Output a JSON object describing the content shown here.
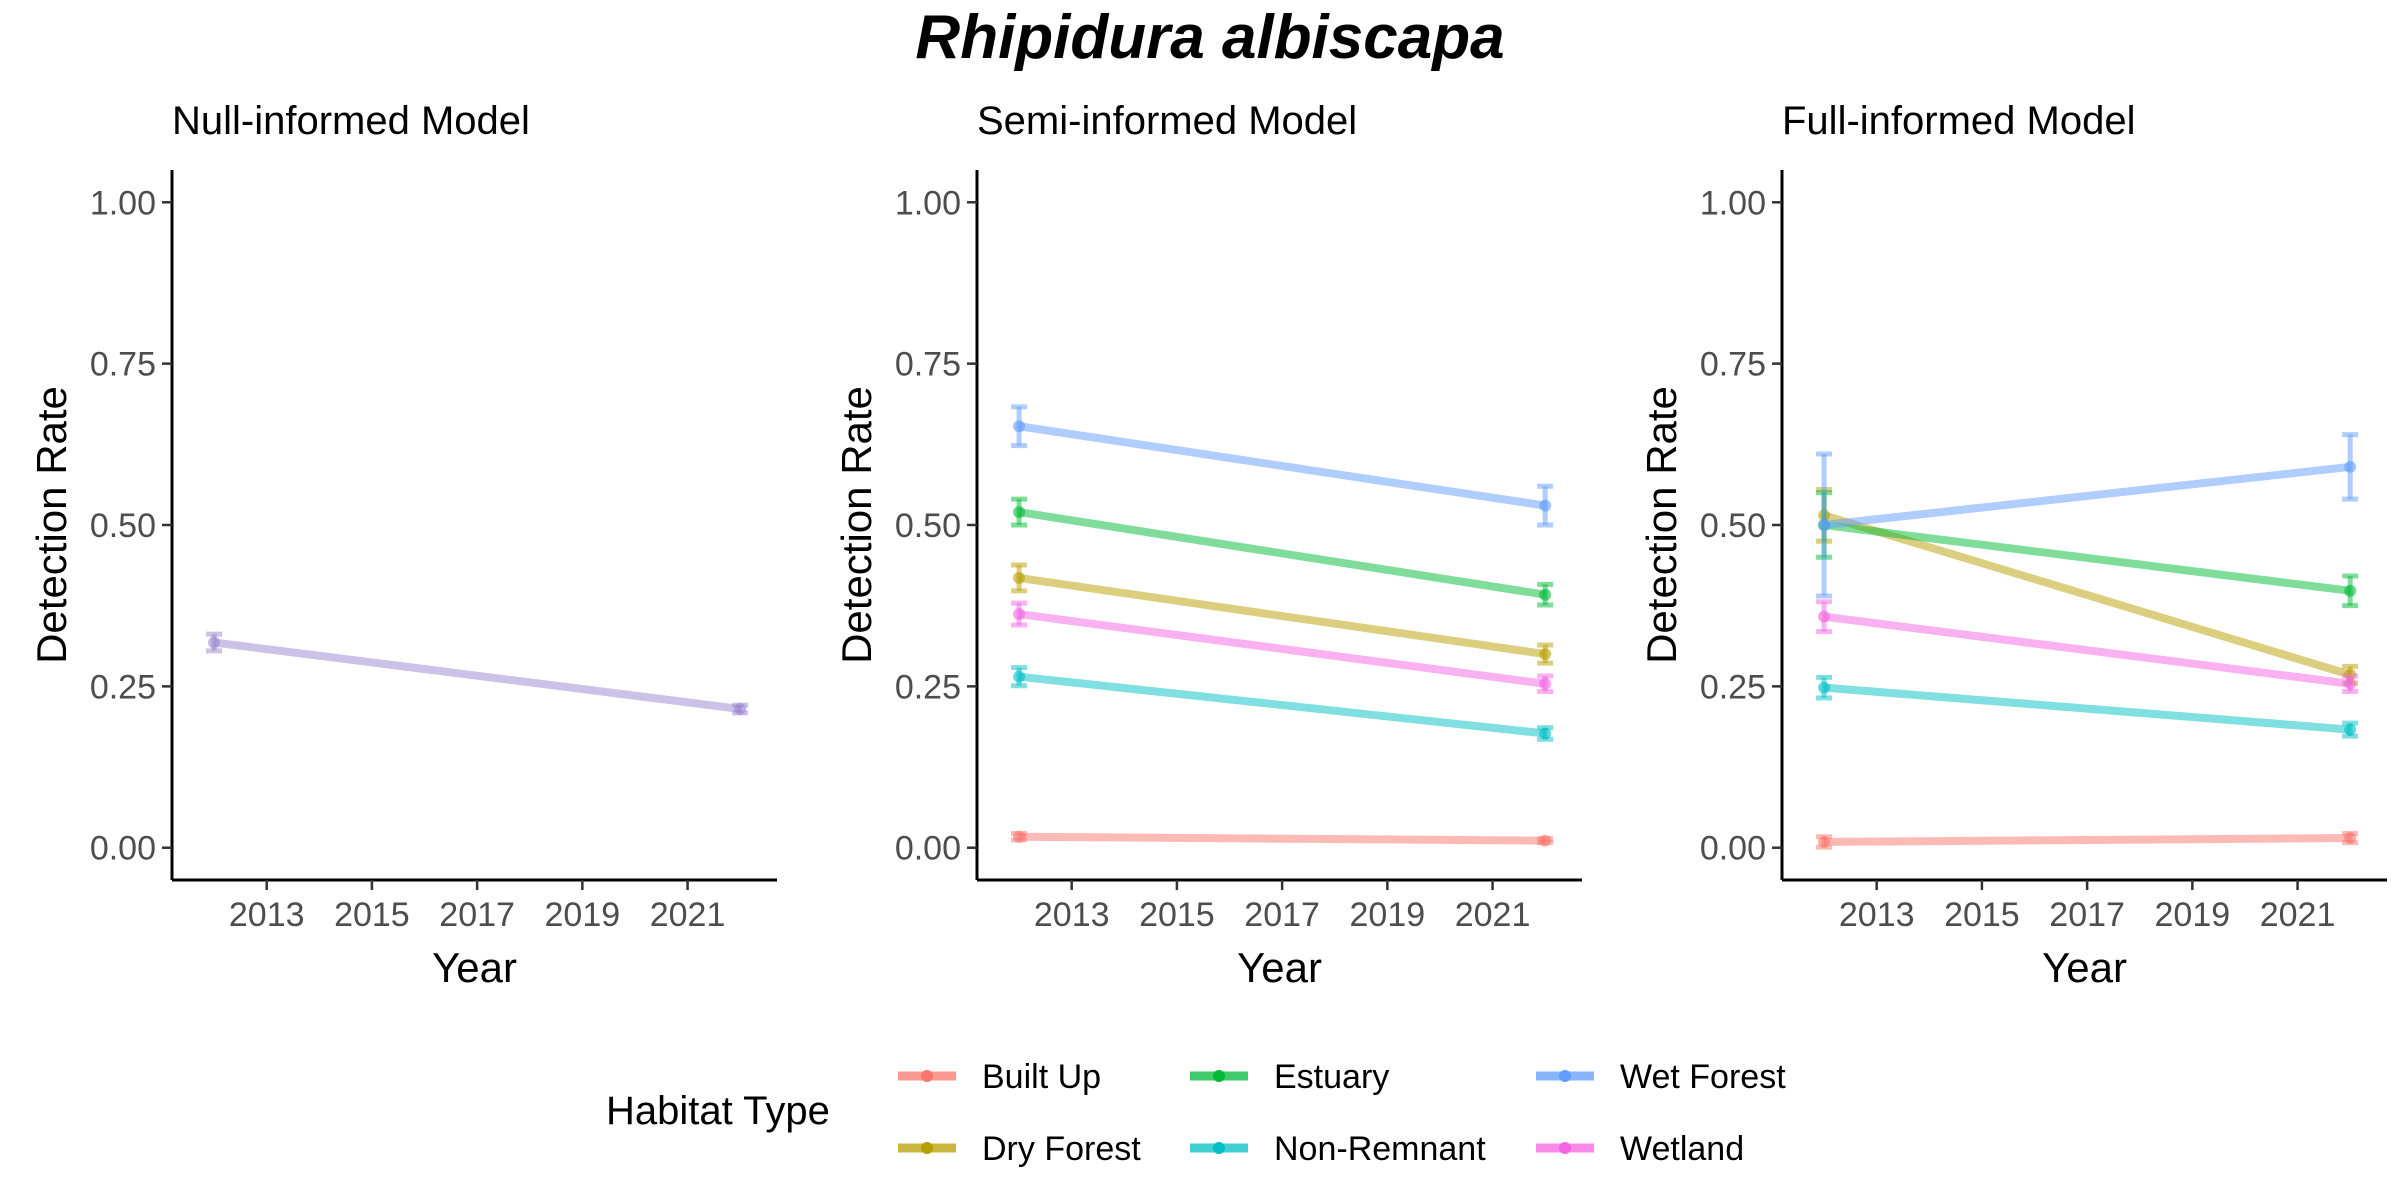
{
  "title": "Rhipidura albiscapa",
  "chart_data": {
    "type": "line",
    "x_ticks": [
      "2013",
      "2015",
      "2017",
      "2019",
      "2021"
    ],
    "xlim": [
      2011.2,
      2022.7
    ],
    "y_ticks": [
      "0.00",
      "0.25",
      "0.50",
      "0.75",
      "1.00"
    ],
    "ylim": [
      -0.05,
      1.05
    ],
    "xlabel": "Year",
    "ylabel": "Detection Rate",
    "legend": {
      "title": "Habitat Type",
      "position": "bottom",
      "entries": [
        {
          "name": "Built Up",
          "color": "#F8766D"
        },
        {
          "name": "Dry Forest",
          "color": "#B79F00"
        },
        {
          "name": "Estuary",
          "color": "#00BA38"
        },
        {
          "name": "Non-Remnant",
          "color": "#00BFC4"
        },
        {
          "name": "Wet Forest",
          "color": "#619CFF"
        },
        {
          "name": "Wetland",
          "color": "#F564E3"
        }
      ]
    },
    "panels": [
      {
        "title": "Null-informed Model",
        "series": [
          {
            "name": "Null",
            "color": "#9A86D0",
            "x": [
              2012,
              2022
            ],
            "y": [
              0.318,
              0.215
            ],
            "lo": [
              0.305,
              0.209
            ],
            "hi": [
              0.331,
              0.221
            ]
          }
        ]
      },
      {
        "title": "Semi-informed Model",
        "series": [
          {
            "name": "Built Up",
            "color": "#F8766D",
            "x": [
              2012,
              2022
            ],
            "y": [
              0.017,
              0.011
            ],
            "lo": [
              0.012,
              0.008
            ],
            "hi": [
              0.022,
              0.014
            ]
          },
          {
            "name": "Dry Forest",
            "color": "#B79F00",
            "x": [
              2012,
              2022
            ],
            "y": [
              0.418,
              0.3
            ],
            "lo": [
              0.398,
              0.286
            ],
            "hi": [
              0.438,
              0.314
            ]
          },
          {
            "name": "Estuary",
            "color": "#00BA38",
            "x": [
              2012,
              2022
            ],
            "y": [
              0.52,
              0.392
            ],
            "lo": [
              0.5,
              0.376
            ],
            "hi": [
              0.54,
              0.408
            ]
          },
          {
            "name": "Non-Remnant",
            "color": "#00BFC4",
            "x": [
              2012,
              2022
            ],
            "y": [
              0.265,
              0.177
            ],
            "lo": [
              0.251,
              0.168
            ],
            "hi": [
              0.279,
              0.186
            ]
          },
          {
            "name": "Wet Forest",
            "color": "#619CFF",
            "x": [
              2012,
              2022
            ],
            "y": [
              0.653,
              0.53
            ],
            "lo": [
              0.623,
              0.5
            ],
            "hi": [
              0.683,
              0.56
            ]
          },
          {
            "name": "Wetland",
            "color": "#F564E3",
            "x": [
              2012,
              2022
            ],
            "y": [
              0.362,
              0.254
            ],
            "lo": [
              0.345,
              0.242
            ],
            "hi": [
              0.379,
              0.266
            ]
          }
        ]
      },
      {
        "title": "Full-informed Model",
        "series": [
          {
            "name": "Built Up",
            "color": "#F8766D",
            "x": [
              2012,
              2022
            ],
            "y": [
              0.009,
              0.015
            ],
            "lo": [
              0.001,
              0.008
            ],
            "hi": [
              0.017,
              0.022
            ]
          },
          {
            "name": "Dry Forest",
            "color": "#B79F00",
            "x": [
              2012,
              2022
            ],
            "y": [
              0.515,
              0.268
            ],
            "lo": [
              0.475,
              0.255
            ],
            "hi": [
              0.555,
              0.281
            ]
          },
          {
            "name": "Estuary",
            "color": "#00BA38",
            "x": [
              2012,
              2022
            ],
            "y": [
              0.5,
              0.398
            ],
            "lo": [
              0.45,
              0.375
            ],
            "hi": [
              0.55,
              0.421
            ]
          },
          {
            "name": "Non-Remnant",
            "color": "#00BFC4",
            "x": [
              2012,
              2022
            ],
            "y": [
              0.248,
              0.183
            ],
            "lo": [
              0.232,
              0.173
            ],
            "hi": [
              0.264,
              0.193
            ]
          },
          {
            "name": "Wet Forest",
            "color": "#619CFF",
            "x": [
              2012,
              2022
            ],
            "y": [
              0.5,
              0.59
            ],
            "lo": [
              0.39,
              0.54
            ],
            "hi": [
              0.61,
              0.64
            ]
          },
          {
            "name": "Wetland",
            "color": "#F564E3",
            "x": [
              2012,
              2022
            ],
            "y": [
              0.358,
              0.254
            ],
            "lo": [
              0.335,
              0.242
            ],
            "hi": [
              0.381,
              0.266
            ]
          }
        ]
      }
    ]
  }
}
